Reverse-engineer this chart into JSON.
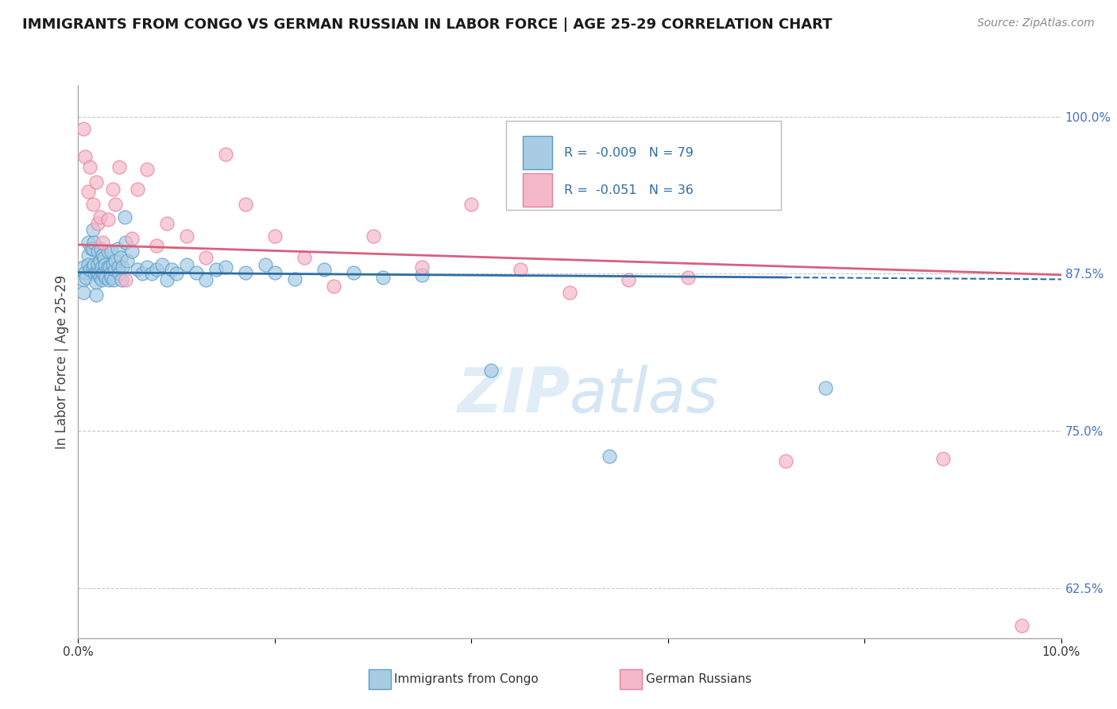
{
  "title": "IMMIGRANTS FROM CONGO VS GERMAN RUSSIAN IN LABOR FORCE | AGE 25-29 CORRELATION CHART",
  "source": "Source: ZipAtlas.com",
  "ylabel": "In Labor Force | Age 25-29",
  "xlim": [
    0.0,
    0.1
  ],
  "ylim": [
    0.585,
    1.025
  ],
  "yticks": [
    0.625,
    0.75,
    0.875,
    1.0
  ],
  "ytick_labels": [
    "62.5%",
    "75.0%",
    "87.5%",
    "100.0%"
  ],
  "xticks": [
    0.0,
    0.02,
    0.04,
    0.06,
    0.08,
    0.1
  ],
  "xtick_labels": [
    "0.0%",
    "",
    "",
    "",
    "",
    "10.0%"
  ],
  "congo_R": -0.009,
  "congo_N": 79,
  "german_R": -0.051,
  "german_N": 36,
  "congo_color": "#a8cce4",
  "german_color": "#f4b8c8",
  "congo_edge_color": "#5b9ec9",
  "german_edge_color": "#e87fa0",
  "congo_line_color": "#2e6da4",
  "german_line_color": "#d95f7f",
  "background_color": "#ffffff",
  "grid_color": "#c8c8c8",
  "legend_label_congo": "Immigrants from Congo",
  "legend_label_german": "German Russians",
  "congo_line_x0": 0.0,
  "congo_line_y0": 0.876,
  "congo_line_x1": 0.072,
  "congo_line_y1": 0.872,
  "congo_line_solid_end": 0.072,
  "german_line_x0": 0.0,
  "german_line_y0": 0.898,
  "german_line_x1": 0.1,
  "german_line_y1": 0.874,
  "congo_points_x": [
    0.0005,
    0.0005,
    0.0005,
    0.0007,
    0.0008,
    0.001,
    0.001,
    0.001,
    0.0012,
    0.0013,
    0.0015,
    0.0015,
    0.0015,
    0.0016,
    0.0016,
    0.0017,
    0.0018,
    0.0018,
    0.0019,
    0.002,
    0.002,
    0.0021,
    0.0022,
    0.0022,
    0.0023,
    0.0024,
    0.0024,
    0.0025,
    0.0025,
    0.0026,
    0.0026,
    0.0027,
    0.0028,
    0.003,
    0.003,
    0.0031,
    0.0032,
    0.0033,
    0.0034,
    0.0034,
    0.0035,
    0.0036,
    0.0037,
    0.0038,
    0.004,
    0.0041,
    0.0042,
    0.0043,
    0.0044,
    0.0045,
    0.0047,
    0.0048,
    0.005,
    0.0055,
    0.006,
    0.0065,
    0.007,
    0.0075,
    0.008,
    0.0085,
    0.009,
    0.0095,
    0.01,
    0.011,
    0.012,
    0.013,
    0.014,
    0.015,
    0.017,
    0.019,
    0.02,
    0.022,
    0.025,
    0.028,
    0.031,
    0.035,
    0.042,
    0.054,
    0.076
  ],
  "congo_points_y": [
    0.88,
    0.87,
    0.86,
    0.876,
    0.872,
    0.9,
    0.89,
    0.882,
    0.878,
    0.895,
    0.91,
    0.895,
    0.88,
    0.9,
    0.882,
    0.875,
    0.868,
    0.858,
    0.876,
    0.893,
    0.882,
    0.875,
    0.885,
    0.872,
    0.895,
    0.88,
    0.87,
    0.89,
    0.875,
    0.888,
    0.875,
    0.882,
    0.872,
    0.893,
    0.88,
    0.87,
    0.88,
    0.875,
    0.893,
    0.872,
    0.882,
    0.87,
    0.878,
    0.885,
    0.895,
    0.88,
    0.875,
    0.888,
    0.87,
    0.88,
    0.92,
    0.9,
    0.885,
    0.893,
    0.878,
    0.875,
    0.88,
    0.875,
    0.878,
    0.882,
    0.87,
    0.878,
    0.875,
    0.882,
    0.876,
    0.87,
    0.878,
    0.88,
    0.876,
    0.882,
    0.876,
    0.871,
    0.878,
    0.876,
    0.872,
    0.874,
    0.798,
    0.73,
    0.784
  ],
  "german_points_x": [
    0.0005,
    0.0007,
    0.001,
    0.0012,
    0.0015,
    0.0018,
    0.002,
    0.0022,
    0.0025,
    0.003,
    0.0035,
    0.0038,
    0.0042,
    0.0048,
    0.0055,
    0.006,
    0.007,
    0.008,
    0.009,
    0.011,
    0.013,
    0.015,
    0.017,
    0.02,
    0.023,
    0.026,
    0.03,
    0.035,
    0.04,
    0.045,
    0.05,
    0.056,
    0.062,
    0.072,
    0.088,
    0.096
  ],
  "german_points_y": [
    0.99,
    0.968,
    0.94,
    0.96,
    0.93,
    0.948,
    0.915,
    0.92,
    0.9,
    0.918,
    0.942,
    0.93,
    0.96,
    0.87,
    0.903,
    0.942,
    0.958,
    0.897,
    0.915,
    0.905,
    0.888,
    0.97,
    0.93,
    0.905,
    0.888,
    0.865,
    0.905,
    0.88,
    0.93,
    0.878,
    0.86,
    0.87,
    0.872,
    0.726,
    0.728,
    0.595
  ]
}
